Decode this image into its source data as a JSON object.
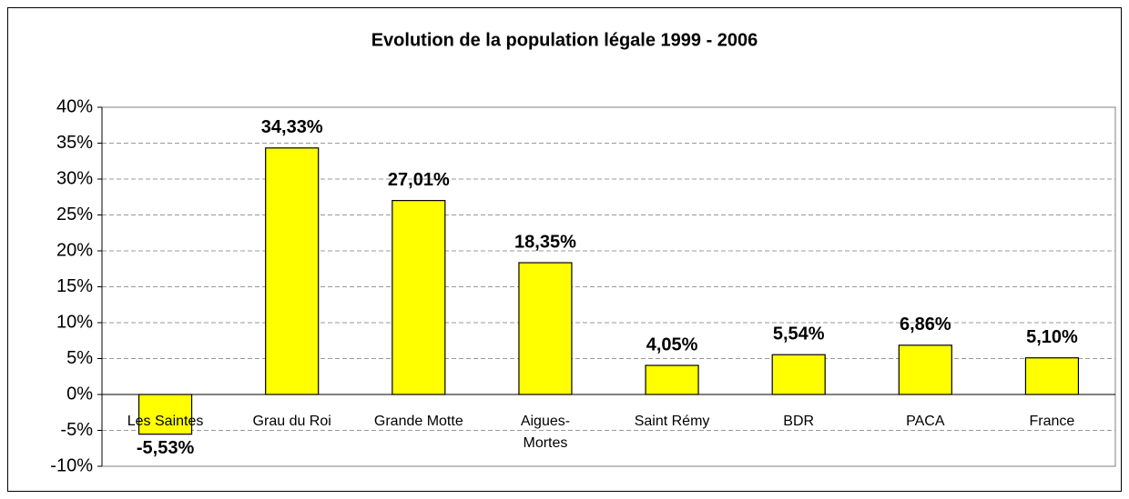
{
  "chart_data": {
    "type": "bar",
    "title": "Evolution de la population légale 1999 - 2006",
    "categories": [
      "Les Saintes",
      "Grau du Roi",
      "Grande Motte",
      "Aigues-Mortes",
      "Saint Rémy",
      "BDR",
      "PACA",
      "France"
    ],
    "values": [
      -5.53,
      34.33,
      27.01,
      18.35,
      4.05,
      5.54,
      6.86,
      5.1
    ],
    "value_labels": [
      "-5,53%",
      "34,33%",
      "27,01%",
      "18,35%",
      "4,05%",
      "5,54%",
      "6,86%",
      "5,10%"
    ],
    "color": "#ffff00",
    "ylim": [
      -10,
      40
    ],
    "yticks": [
      {
        "value": -10,
        "label": "-10%"
      },
      {
        "value": -5,
        "label": "-5%"
      },
      {
        "value": 0,
        "label": "0%"
      },
      {
        "value": 5,
        "label": "5%"
      },
      {
        "value": 10,
        "label": "10%"
      },
      {
        "value": 15,
        "label": "15%"
      },
      {
        "value": 20,
        "label": "20%"
      },
      {
        "value": 25,
        "label": "25%"
      },
      {
        "value": 30,
        "label": "30%"
      },
      {
        "value": 35,
        "label": "35%"
      },
      {
        "value": 40,
        "label": "40%"
      }
    ],
    "grid": true
  }
}
